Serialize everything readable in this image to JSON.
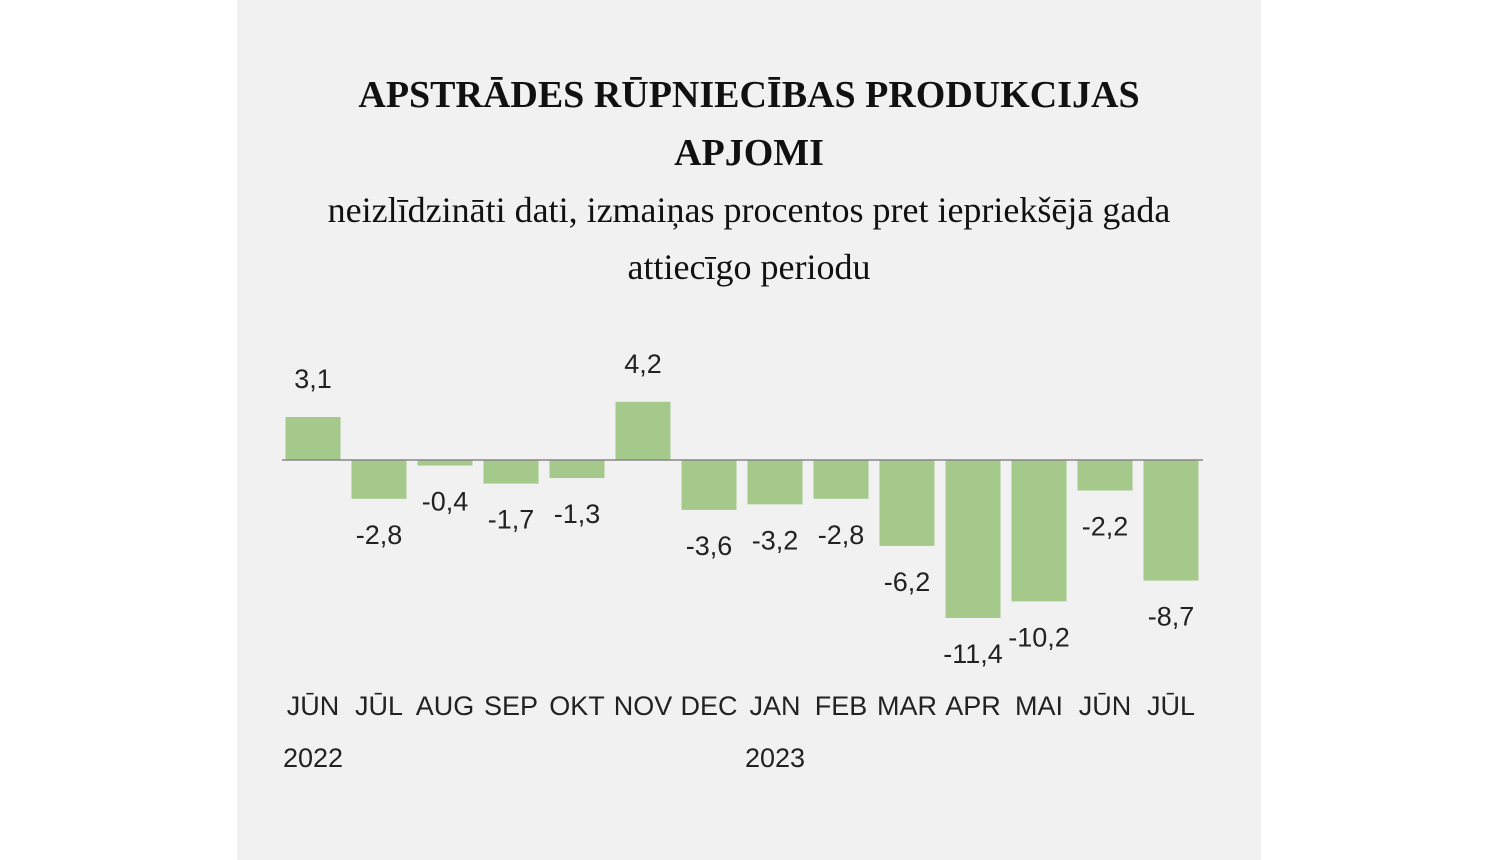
{
  "chart_data": {
    "type": "bar",
    "title": "APSTRĀDES RŪPNIECĪBAS PRODUKCIJAS APJOMI",
    "subtitle": "neizlīdzināti dati, izmaiņas procentos pret iepriekšējā gada attiecīgo periodu",
    "categories": [
      "JŪN",
      "JŪL",
      "AUG",
      "SEP",
      "OKT",
      "NOV",
      "DEC",
      "JAN",
      "FEB",
      "MAR",
      "APR",
      "MAI",
      "JŪN",
      "JŪL"
    ],
    "year_labels": [
      "2022",
      null,
      null,
      null,
      null,
      null,
      null,
      "2023",
      null,
      null,
      null,
      null,
      null,
      null
    ],
    "values": [
      3.1,
      -2.8,
      -0.4,
      -1.7,
      -1.3,
      4.2,
      -3.6,
      -3.2,
      -2.8,
      -6.2,
      -11.4,
      -10.2,
      -2.2,
      -8.7
    ],
    "value_labels": [
      "3,1",
      "-2,8",
      "-0,4",
      "-1,7",
      "-1,3",
      "4,2",
      "-3,6",
      "-3,2",
      "-2,8",
      "-6,2",
      "-11,4",
      "-10,2",
      "-2,2",
      "-8,7"
    ],
    "color": "#a5c98b"
  }
}
